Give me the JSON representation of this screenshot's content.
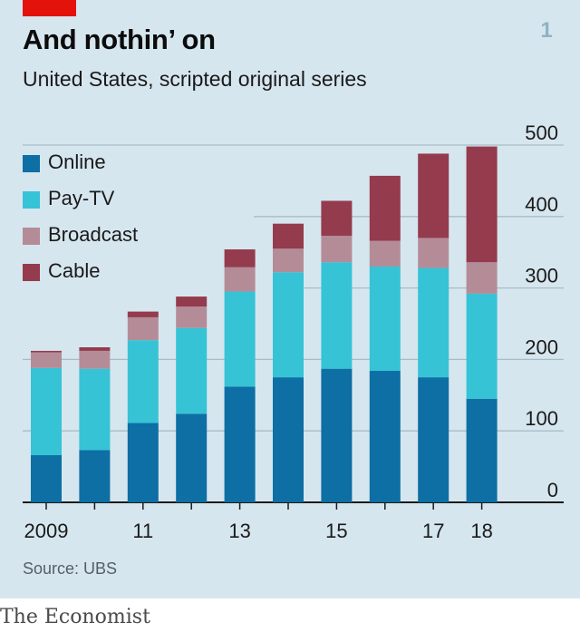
{
  "header": {
    "title": "And nothin’ on",
    "subtitle": "United States, scripted original series",
    "badge": "1"
  },
  "chart_data": {
    "type": "bar",
    "stacked": true,
    "categories": [
      "2009",
      "2010",
      "2011",
      "2012",
      "2013",
      "2014",
      "2015",
      "2016",
      "2017",
      "2018"
    ],
    "x_tick_labels": [
      "2009",
      "",
      "11",
      "",
      "13",
      "",
      "15",
      "",
      "17",
      "18"
    ],
    "series": [
      {
        "name": "Online",
        "color": "#0d6fa3",
        "values": [
          66,
          73,
          111,
          124,
          162,
          175,
          187,
          184,
          175,
          145
        ]
      },
      {
        "name": "Pay-TV",
        "color": "#36c3d6",
        "values": [
          122,
          114,
          116,
          120,
          133,
          147,
          149,
          146,
          153,
          147
        ]
      },
      {
        "name": "Broadcast",
        "color": "#b48c98",
        "values": [
          22,
          25,
          32,
          30,
          34,
          33,
          37,
          36,
          42,
          44
        ]
      },
      {
        "name": "Cable",
        "color": "#943b4d",
        "values": [
          2,
          5,
          8,
          14,
          25,
          35,
          49,
          91,
          118,
          162
        ]
      }
    ],
    "ylim": [
      0,
      500
    ],
    "yticks": [
      0,
      100,
      200,
      300,
      400,
      500
    ],
    "y_axis_position": "right",
    "grid": true,
    "legend_position": "top-left"
  },
  "source": "Source: UBS",
  "brand": "The Economist"
}
